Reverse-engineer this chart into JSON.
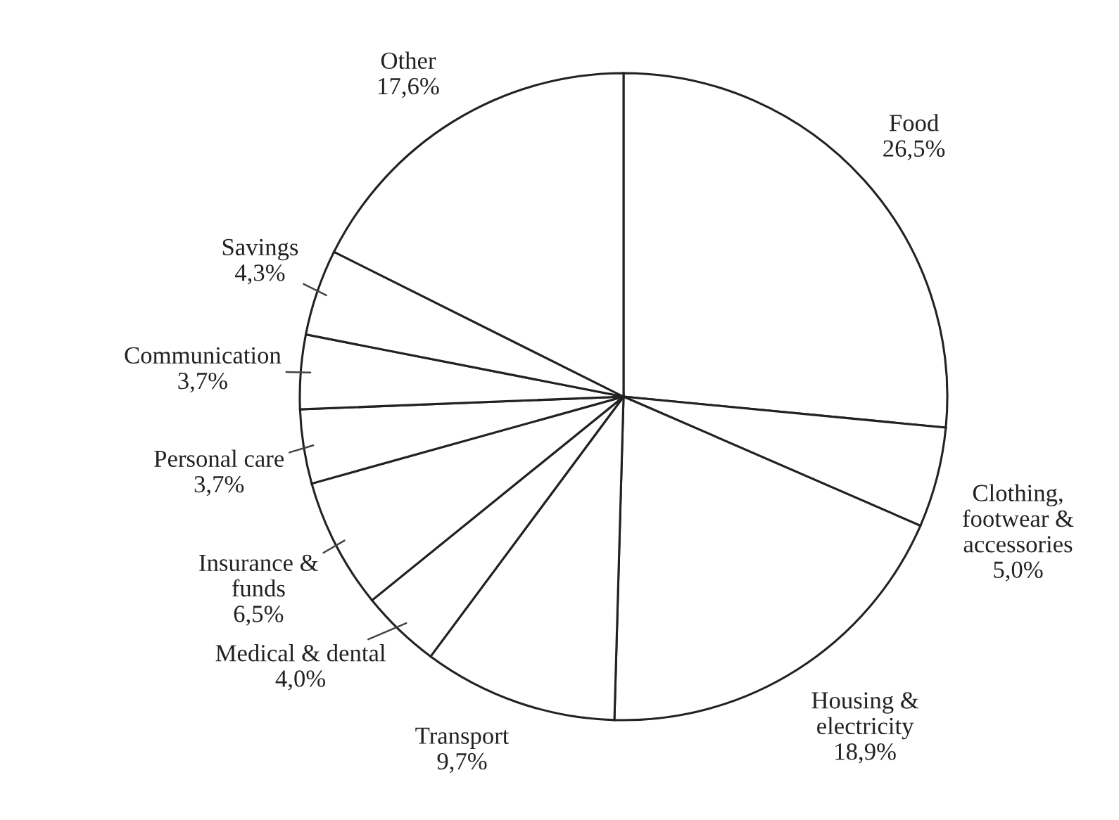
{
  "chart_data": {
    "type": "pie",
    "categories": [
      "Food",
      "Clothing,\nfootwear &\naccessories",
      "Housing &\nelectricity",
      "Transport",
      "Medical & dental",
      "Insurance &\nfunds",
      "Personal care",
      "Communication",
      "Savings",
      "Other"
    ],
    "values": [
      26.5,
      5.0,
      18.9,
      9.7,
      4.0,
      6.5,
      3.7,
      3.7,
      4.3,
      17.6
    ],
    "value_labels": [
      "26,5%",
      "5,0%",
      "18,9%",
      "9,7%",
      "4,0%",
      "6,5%",
      "3,7%",
      "3,7%",
      "4,3%",
      "17,6%"
    ],
    "colors": [
      "#ffffff",
      "#ffffff",
      "#ffffff",
      "#ffffff",
      "#ffffff",
      "#ffffff",
      "#ffffff",
      "#ffffff",
      "#ffffff",
      "#ffffff"
    ]
  }
}
